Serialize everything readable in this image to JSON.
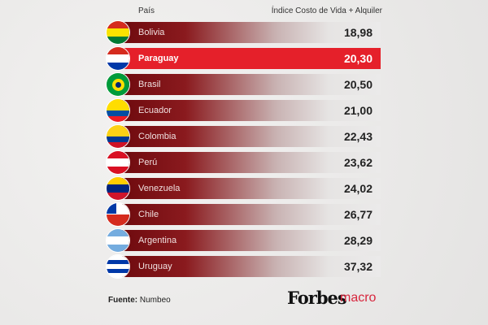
{
  "header": {
    "country": "País",
    "index": "Índice Costo de Vida + Alquiler"
  },
  "chart_data": {
    "type": "table",
    "title": "",
    "columns": [
      "País",
      "Índice Costo de Vida + Alquiler"
    ],
    "categories": [
      "Bolivia",
      "Paraguay",
      "Brasil",
      "Ecuador",
      "Colombia",
      "Perú",
      "Venezuela",
      "Chile",
      "Argentina",
      "Uruguay"
    ],
    "values": [
      "18,98",
      "20,30",
      "20,50",
      "21,00",
      "22,43",
      "23,62",
      "24,02",
      "26,77",
      "28,29",
      "37,32"
    ],
    "highlight": "Paraguay"
  },
  "flags": [
    [
      "#d52b1e",
      "#f9e300",
      "#007934"
    ],
    [
      "#d52b1e",
      "#ffffff",
      "#0038a8"
    ],
    [
      "#009b3a",
      "#009b3a",
      "#009b3a"
    ],
    [
      "#ffdd00",
      "#ffdd00",
      "#034ea2",
      "#ed1c24"
    ],
    [
      "#fcd116",
      "#fcd116",
      "#003893",
      "#ce1126"
    ],
    [
      "#d91023",
      "#ffffff",
      "#d91023"
    ],
    [
      "#ffcc00",
      "#00247d",
      "#cf142b"
    ],
    [
      "#ffffff",
      "#d52b1e"
    ],
    [
      "#74acdf",
      "#ffffff",
      "#74acdf"
    ],
    [
      "#ffffff",
      "#0038a8",
      "#ffffff",
      "#0038a8",
      "#ffffff"
    ]
  ],
  "colors": {
    "highlight": "#e5202a",
    "bar_dark": "#6e0a0e"
  },
  "footer": {
    "source_label": "Fuente:",
    "source": "Numbeo",
    "logo1": "Forbes",
    "logo2": "macro"
  }
}
